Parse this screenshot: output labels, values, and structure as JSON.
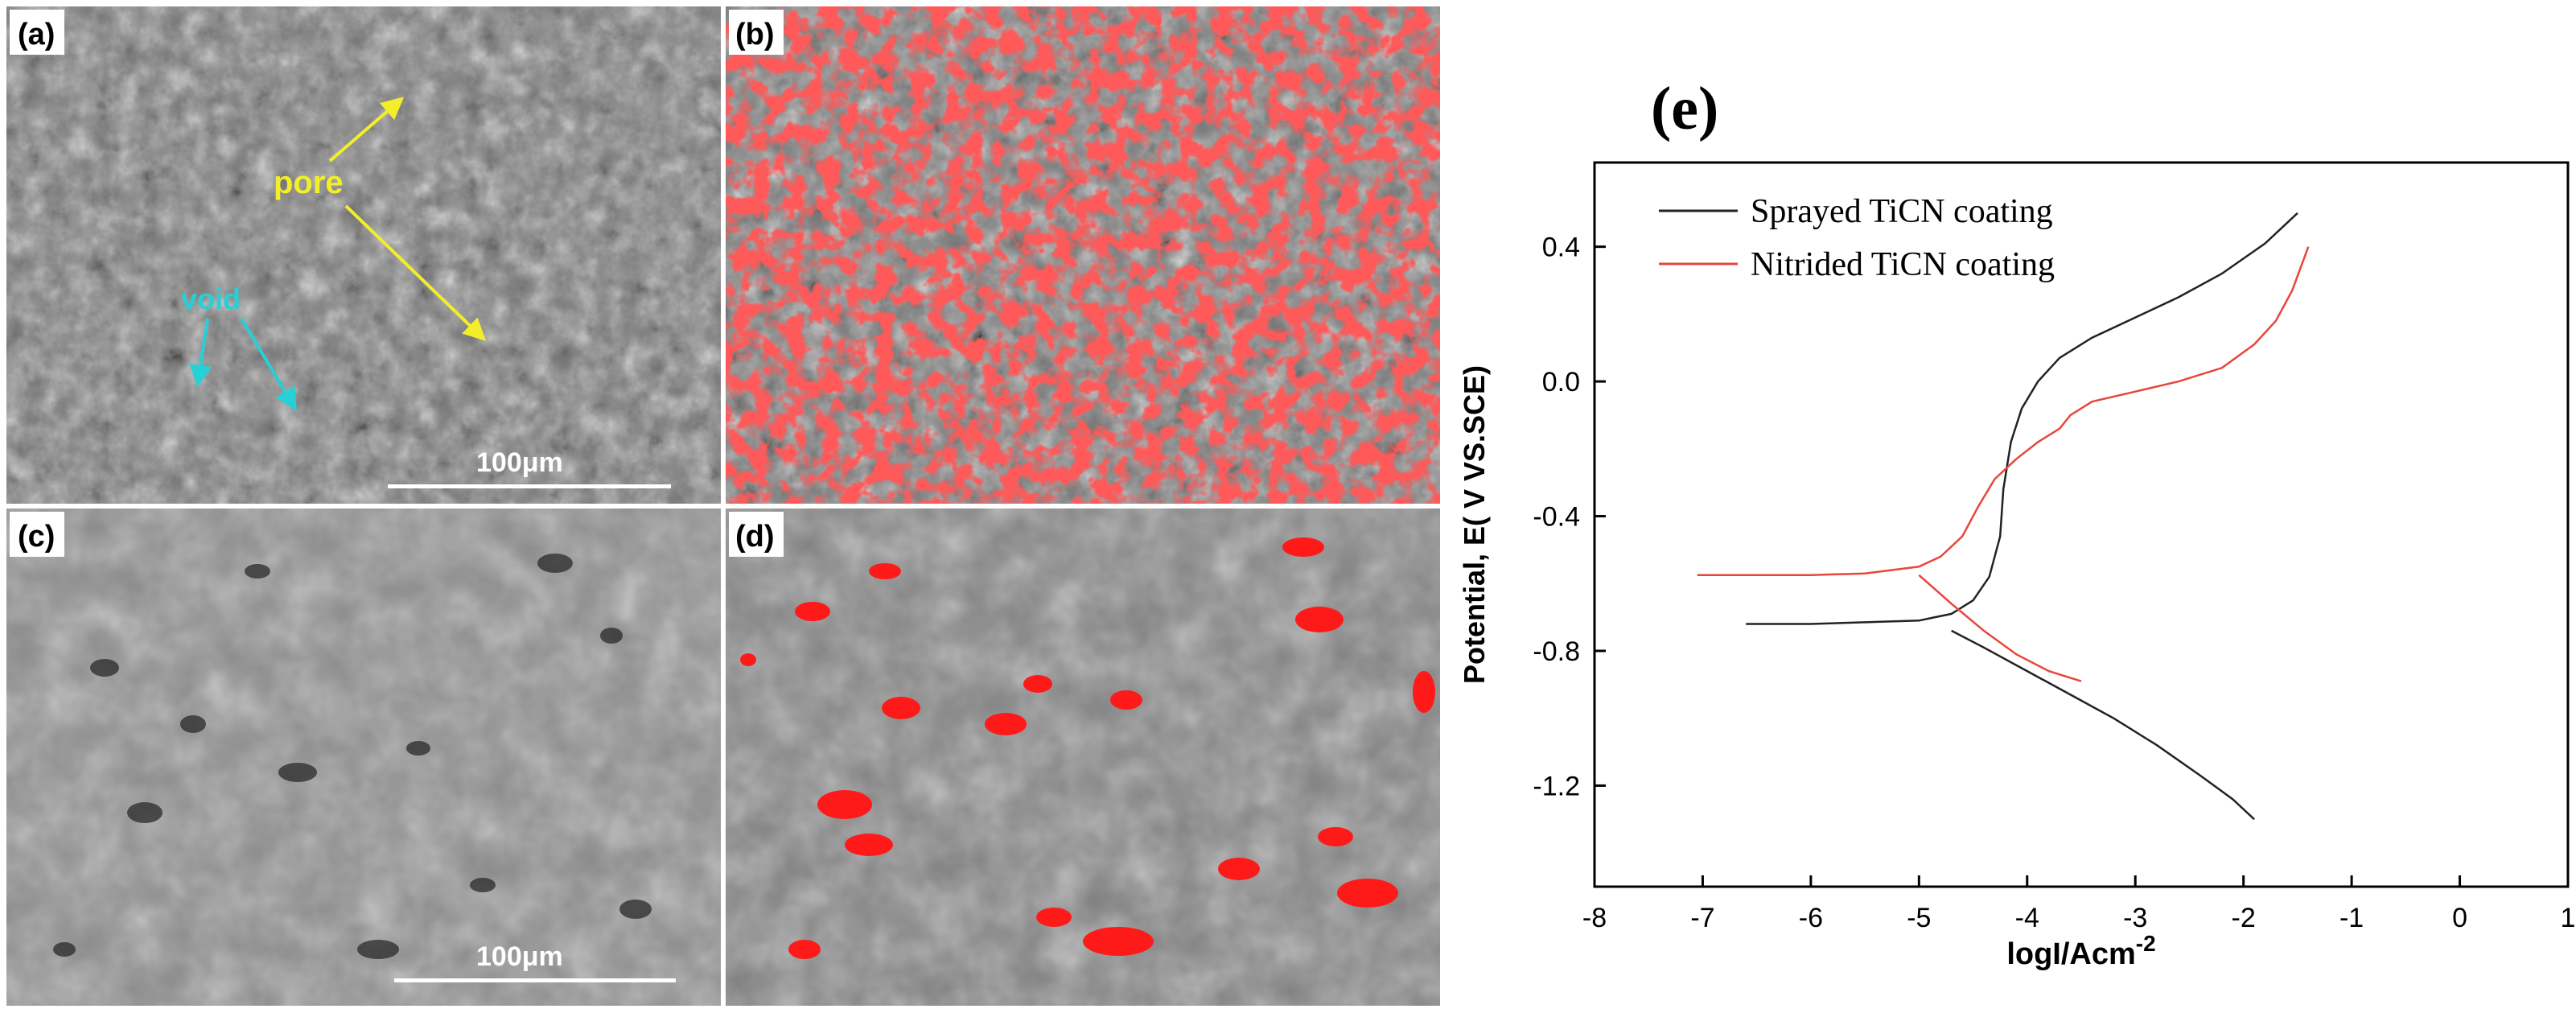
{
  "figure": {
    "panels": [
      {
        "id": "a",
        "label": "(a)",
        "annotations": {
          "pore": "pore",
          "void": "void"
        },
        "scale_bar": "100μm"
      },
      {
        "id": "b",
        "label": "(b)"
      },
      {
        "id": "c",
        "label": "(c)",
        "scale_bar": "100μm"
      },
      {
        "id": "d",
        "label": "(d)"
      }
    ],
    "colors": {
      "highlight": "#ff1a1a",
      "pore_annotation": "#f2ef2a",
      "void_annotation": "#27d0d6",
      "sem_gray": "#7f7f7f"
    }
  },
  "chart_data": {
    "type": "line",
    "panel_label": "(e)",
    "xlabel": "logI/Acm",
    "xlabel_superscript": "-2",
    "ylabel": "Potential, E( V VS.SCE)",
    "xlim": [
      -8,
      1
    ],
    "ylim": [
      -1.5,
      0.65
    ],
    "xticks": [
      -8,
      -7,
      -6,
      -5,
      -4,
      -3,
      -2,
      -1,
      0,
      1
    ],
    "yticks": [
      0.4,
      0.0,
      -0.4,
      -0.8,
      -1.2
    ],
    "ytick_labels": [
      "0.4",
      "0.0",
      "-0.4",
      "-0.8",
      "-1.2"
    ],
    "grid": false,
    "legend_position": "top-left",
    "series": [
      {
        "name": "Sprayed TiCN coating",
        "color": "#222222",
        "x": [
          -6.6,
          -6.0,
          -5.5,
          -5.0,
          -4.7,
          -4.5,
          -4.35,
          -4.25,
          -4.22,
          -4.15,
          -4.05,
          -3.9,
          -3.7,
          -3.4,
          -3.0,
          -2.6,
          -2.2,
          -1.8,
          -1.5
        ],
        "y": [
          -0.72,
          -0.72,
          -0.715,
          -0.71,
          -0.69,
          -0.65,
          -0.58,
          -0.46,
          -0.32,
          -0.18,
          -0.08,
          0.0,
          0.07,
          0.13,
          0.19,
          0.25,
          0.32,
          0.41,
          0.5
        ],
        "branch_x": [
          -4.7,
          -4.4,
          -4.0,
          -3.6,
          -3.2,
          -2.8,
          -2.4,
          -2.1,
          -1.9
        ],
        "branch_y": [
          -0.74,
          -0.79,
          -0.86,
          -0.93,
          -1.0,
          -1.08,
          -1.17,
          -1.24,
          -1.3
        ]
      },
      {
        "name": "Nitrided TiCN coating",
        "color": "#e8463a",
        "x": [
          -7.05,
          -6.5,
          -6.0,
          -5.5,
          -5.0,
          -4.8,
          -4.6,
          -4.45,
          -4.3,
          -4.1,
          -3.9,
          -3.7,
          -3.6,
          -3.4,
          -3.0,
          -2.6,
          -2.2,
          -1.9,
          -1.7,
          -1.55,
          -1.4
        ],
        "y": [
          -0.575,
          -0.575,
          -0.575,
          -0.57,
          -0.55,
          -0.52,
          -0.46,
          -0.37,
          -0.29,
          -0.23,
          -0.18,
          -0.14,
          -0.1,
          -0.06,
          -0.03,
          0.0,
          0.04,
          0.11,
          0.18,
          0.27,
          0.4
        ],
        "branch_x": [
          -5.0,
          -4.7,
          -4.4,
          -4.1,
          -3.8,
          -3.5
        ],
        "branch_y": [
          -0.575,
          -0.66,
          -0.74,
          -0.81,
          -0.86,
          -0.89
        ]
      }
    ]
  }
}
